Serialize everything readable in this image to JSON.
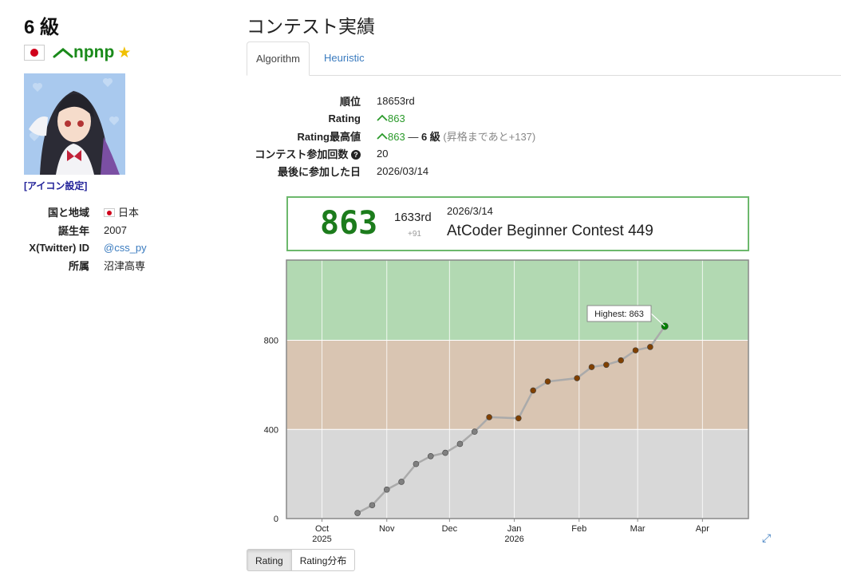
{
  "profile": {
    "kyu": "6 級",
    "username": "npnp",
    "icon_setting": "[アイコン設定]",
    "fields": [
      {
        "label": "国と地域",
        "value": "日本"
      },
      {
        "label": "誕生年",
        "value": "2007"
      },
      {
        "label": "X(Twitter) ID",
        "value": "@css_py"
      },
      {
        "label": "所属",
        "value": "沼津高専"
      }
    ]
  },
  "main": {
    "title": "コンテスト実績",
    "tabs": [
      "Algorithm",
      "Heuristic"
    ],
    "stats": {
      "rank_label": "順位",
      "rank": "18653rd",
      "rating_label": "Rating",
      "rating": "863",
      "highest_label": "Rating最高値",
      "highest": "863",
      "highest_sep": "—",
      "highest_kyu": "6 級",
      "highest_note": "(昇格まであと+137)",
      "count_label": "コンテスト参加回数",
      "count": "20",
      "last_label": "最後に参加した日",
      "last": "2026/03/14"
    }
  },
  "card": {
    "rating": "863",
    "rank": "1633rd",
    "diff": "+91",
    "date": "2026/3/14",
    "contest": "AtCoder Beginner Contest 449"
  },
  "buttons": [
    "Rating",
    "Rating分布"
  ],
  "colors": {
    "green": "#008000",
    "brown": "#804000",
    "gray": "#808080"
  },
  "chart_data": {
    "type": "line",
    "xlabel": "",
    "ylabel": "",
    "x_ticks": [
      "Oct\n2025",
      "Nov",
      "Dec",
      "Jan\n2026",
      "Feb",
      "Mar",
      "Apr"
    ],
    "y_ticks": [
      0,
      400,
      800
    ],
    "ylim": [
      0,
      1160
    ],
    "bands": [
      {
        "from": 0,
        "to": 400,
        "color": "#d8d8d8"
      },
      {
        "from": 400,
        "to": 800,
        "color": "#d9c5b2"
      },
      {
        "from": 800,
        "to": 1160,
        "color": "#b2d9b2"
      }
    ],
    "annotation": "Highest: 863",
    "points": [
      {
        "date": "2025-10-18",
        "rating": 25
      },
      {
        "date": "2025-10-25",
        "rating": 60
      },
      {
        "date": "2025-11-01",
        "rating": 130
      },
      {
        "date": "2025-11-08",
        "rating": 165
      },
      {
        "date": "2025-11-15",
        "rating": 245
      },
      {
        "date": "2025-11-22",
        "rating": 280
      },
      {
        "date": "2025-11-29",
        "rating": 295
      },
      {
        "date": "2025-12-06",
        "rating": 335
      },
      {
        "date": "2025-12-13",
        "rating": 390
      },
      {
        "date": "2025-12-20",
        "rating": 455
      },
      {
        "date": "2026-01-03",
        "rating": 450
      },
      {
        "date": "2026-01-10",
        "rating": 575
      },
      {
        "date": "2026-01-17",
        "rating": 615
      },
      {
        "date": "2026-01-31",
        "rating": 630
      },
      {
        "date": "2026-02-07",
        "rating": 680
      },
      {
        "date": "2026-02-14",
        "rating": 690
      },
      {
        "date": "2026-02-21",
        "rating": 710
      },
      {
        "date": "2026-02-28",
        "rating": 755
      },
      {
        "date": "2026-03-07",
        "rating": 770
      },
      {
        "date": "2026-03-14",
        "rating": 863
      }
    ]
  }
}
